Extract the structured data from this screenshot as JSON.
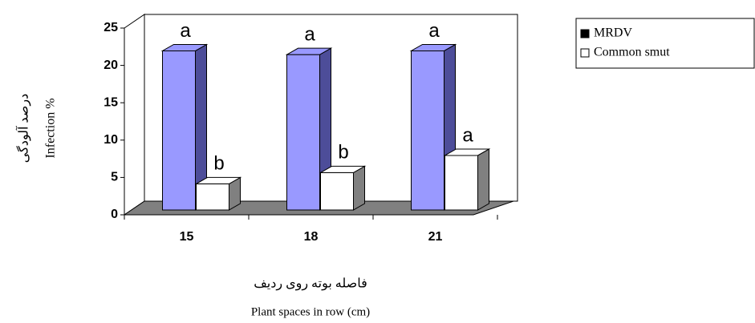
{
  "chart_data": {
    "type": "bar3d",
    "y_label_fa": "درصد آلودگی",
    "y_label": "Infection %",
    "x_label_fa": "فاصله بوته روی ردیف",
    "x_label": "Plant  spaces in row (cm)",
    "categories": [
      "15",
      "18",
      "21"
    ],
    "series": [
      {
        "name": "MRDV",
        "color": "#9999ff",
        "legend_color": "#000000",
        "values": [
          21.3,
          20.8,
          21.3
        ],
        "letters": [
          "a",
          "a",
          "a"
        ]
      },
      {
        "name": "Common smut",
        "color": "#ffffff",
        "legend_color": "#ffffff",
        "values": [
          3.5,
          5,
          7.3
        ],
        "letters": [
          "b",
          "b",
          "a"
        ]
      }
    ],
    "ylim": [
      0,
      25
    ],
    "yticks": [
      0,
      5,
      10,
      15,
      20,
      25
    ],
    "floor_color": "#808080"
  }
}
